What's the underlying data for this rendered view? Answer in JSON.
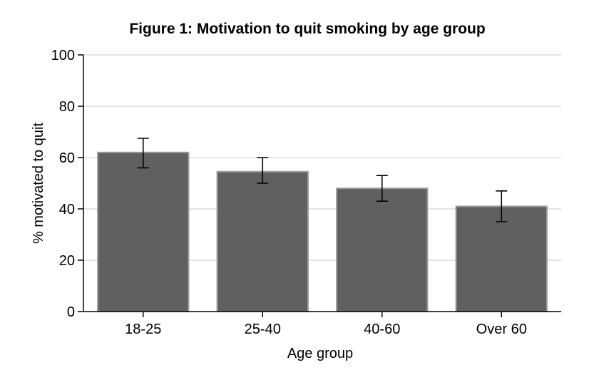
{
  "chart_data": {
    "type": "bar",
    "title": "Figure 1: Motivation to quit smoking by age group",
    "xlabel": "Age group",
    "ylabel": "% motivated to quit",
    "categories": [
      "18-25",
      "25-40",
      "40-60",
      "Over 60"
    ],
    "values": [
      62,
      54.5,
      48,
      41
    ],
    "error_low": [
      56,
      50,
      43,
      35
    ],
    "error_high": [
      67.5,
      60,
      53,
      47
    ],
    "ylim": [
      0,
      100
    ],
    "yticks": [
      0,
      20,
      40,
      60,
      80,
      100
    ],
    "grid": true,
    "bar_color": "#606060",
    "bar_edge_color": "#9a9a9a",
    "grid_color": "#c8c8c8"
  }
}
